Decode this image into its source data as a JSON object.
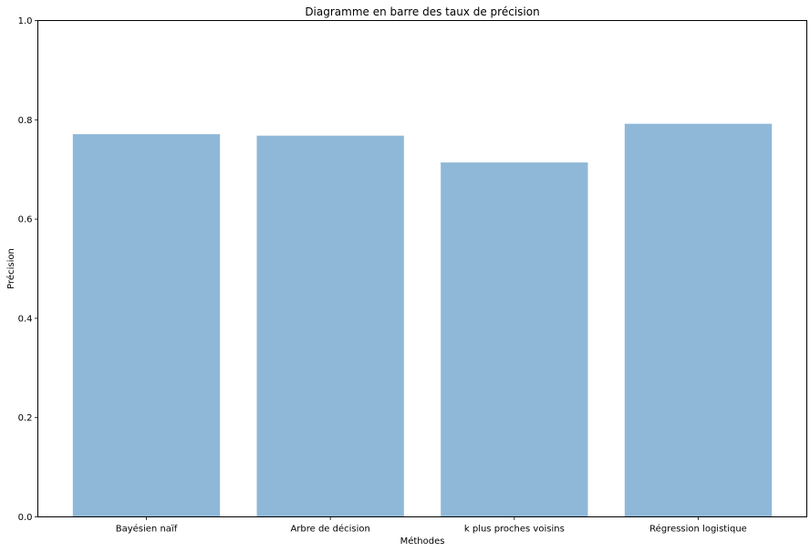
{
  "chart_data": {
    "type": "bar",
    "title": "Diagramme en barre des taux de précision",
    "xlabel": "Méthodes",
    "ylabel": "Précision",
    "categories": [
      "Bayésien naïf",
      "Arbre de décision",
      "k plus proches voisins",
      "Régression logistique"
    ],
    "values": [
      0.771,
      0.768,
      0.714,
      0.792
    ],
    "ylim": [
      0,
      1.0
    ],
    "yticks": [
      0.0,
      0.2,
      0.4,
      0.6,
      0.8,
      1.0
    ],
    "ytick_labels": [
      "0.0",
      "0.2",
      "0.4",
      "0.6",
      "0.8",
      "1.0"
    ],
    "bar_color": "#8fb8d8",
    "grid": false,
    "legend": "none"
  }
}
